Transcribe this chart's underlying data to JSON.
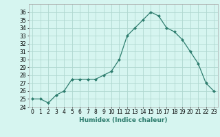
{
  "x": [
    0,
    1,
    2,
    3,
    4,
    5,
    6,
    7,
    8,
    9,
    10,
    11,
    12,
    13,
    14,
    15,
    16,
    17,
    18,
    19,
    20,
    21,
    22,
    23
  ],
  "y": [
    25,
    25,
    24.5,
    25.5,
    26,
    27.5,
    27.5,
    27.5,
    27.5,
    28,
    28.5,
    30,
    33,
    34,
    35,
    36,
    35.5,
    34,
    33.5,
    32.5,
    31,
    29.5,
    27,
    26
  ],
  "line_color": "#2e7d6e",
  "marker": "D",
  "marker_size": 2,
  "bg_color": "#d6f5f0",
  "grid_color": "#b0d8d0",
  "xlabel": "Humidex (Indice chaleur)",
  "xlim": [
    -0.5,
    23.5
  ],
  "ylim": [
    24,
    37
  ],
  "yticks": [
    24,
    25,
    26,
    27,
    28,
    29,
    30,
    31,
    32,
    33,
    34,
    35,
    36
  ],
  "xticks": [
    0,
    1,
    2,
    3,
    4,
    5,
    6,
    7,
    8,
    9,
    10,
    11,
    12,
    13,
    14,
    15,
    16,
    17,
    18,
    19,
    20,
    21,
    22,
    23
  ],
  "label_fontsize": 6.5,
  "tick_fontsize": 5.5
}
